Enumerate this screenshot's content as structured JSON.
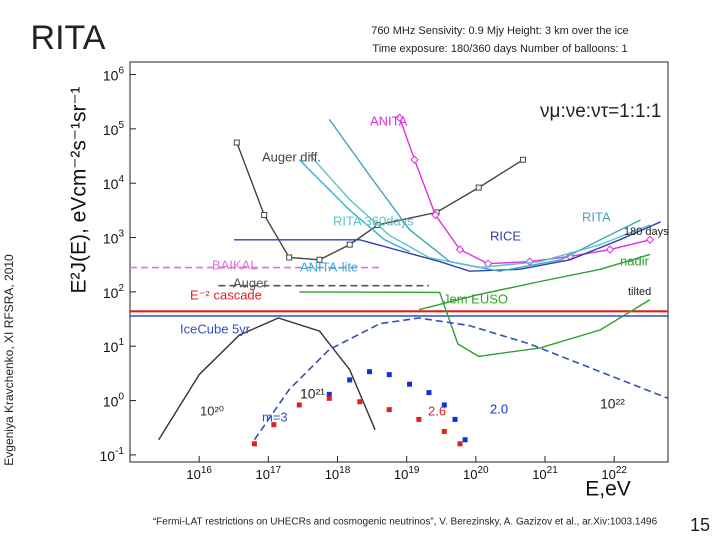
{
  "slide": {
    "title": "RITA",
    "header": [
      "760 MHz   Sensivity: 0.9 Mjy  Height: 3 km over the ice",
      "Time exposure: 180/360 days  Number of balloons:  1"
    ],
    "side_note": "Evgeniya Kravchenko, XI RFSRA, 2010",
    "footer": "“Fermi-LAT restrictions on UHECRs and cosmogenic neutrinos”, V. Berezinsky, A. Gazizov et al., ar.Xiv:1003.1496",
    "page_number": "15"
  },
  "chart_data": {
    "type": "line",
    "log_x": true,
    "log_y": true,
    "grid": false,
    "x_label": "E,eV",
    "y_label": "E²J(E), eVcm⁻²s⁻¹sr⁻¹",
    "xlim": [
      1000000000000000.0,
      6e+22
    ],
    "ylim": [
      0.074,
      1700000.0
    ],
    "xticks": [
      {
        "value": 1e+16,
        "label": "10^16"
      },
      {
        "value": 1e+17,
        "label": "10^17"
      },
      {
        "value": 1e+18,
        "label": "10^18"
      },
      {
        "value": 1e+19,
        "label": "10^19"
      },
      {
        "value": 1e+20,
        "label": "10^20"
      },
      {
        "value": 1e+21,
        "label": "10^21"
      },
      {
        "value": 1e+22,
        "label": "10^22"
      }
    ],
    "yticks": [
      {
        "value": 0.1,
        "label": "10^-1"
      },
      {
        "value": 1,
        "label": "10^0"
      },
      {
        "value": 10,
        "label": "10^1"
      },
      {
        "value": 100,
        "label": "10^2"
      },
      {
        "value": 1000,
        "label": "10^3"
      },
      {
        "value": 10000,
        "label": "10^4"
      },
      {
        "value": 100000,
        "label": "10^5"
      },
      {
        "value": 1000000,
        "label": "10^6"
      }
    ],
    "series": [
      {
        "name": "Auger diff.",
        "color": "#444444",
        "style": "square-markers",
        "x": [
          3.5e+16,
          8.7e+16,
          2e+17,
          5.5e+17,
          1.5e+18,
          3.8e+18,
          2.7e+19,
          1.1e+20,
          4.8e+20
        ],
        "values": [
          56000,
          2600,
          430,
          390,
          740,
          1700,
          2900,
          8300,
          27000
        ]
      },
      {
        "name": "ANITA",
        "color": "#e030e0",
        "style": "diamond-markers",
        "x": [
          7.9e+18,
          1.3e+19,
          2.6e+19,
          5.9e+19,
          1.5e+20,
          6e+20,
          2.3e+21,
          8.7e+21,
          3.3e+22
        ],
        "values": [
          160000,
          27000,
          2600,
          600,
          330,
          360,
          450,
          600,
          910
        ]
      },
      {
        "name": "RICE",
        "color": "#3040b0",
        "style": "solid",
        "x": [
          3.2e+16,
          2.1e+18,
          3e+19,
          8.1e+19,
          4.3e+20,
          2.3e+21,
          1.2e+22,
          4.7e+22
        ],
        "values": [
          910,
          910,
          360,
          240,
          260,
          390,
          910,
          1950
        ]
      },
      {
        "name": "ANITA-lite",
        "color": "#30b0d0",
        "style": "solid",
        "x": [
          2.8e+17,
          1.5e+18,
          4.8e+18,
          1.1e+19
        ],
        "values": [
          27000,
          3200,
          910,
          550
        ]
      },
      {
        "name": "RITA",
        "color": "#40a8b8",
        "style": "solid",
        "x": [
          7.6e+17,
          2.9e+18,
          1.1e+19,
          4.2e+19,
          2.2e+20,
          1.7e+21,
          6.3e+21,
          2.4e+22
        ],
        "values": [
          150000,
          14000,
          1400,
          360,
          240,
          390,
          910,
          2100
        ]
      },
      {
        "name": "RITA 360days",
        "color": "#60c0c8",
        "style": "solid",
        "x": [
          3.9e+17,
          1.5e+18,
          5.6e+18,
          2.1e+19,
          1.1e+20,
          8.5e+20,
          6.3e+21,
          3.3e+22
        ],
        "values": [
          34000,
          5000,
          1100,
          430,
          280,
          360,
          740,
          1700
        ]
      },
      {
        "name": "BAIKAL",
        "color": "#e070e0",
        "style": "dashed",
        "x": [
          1000000000000000.0,
          4.1e+18
        ],
        "values": [
          280,
          280
        ]
      },
      {
        "name": "Auger",
        "color": "#555555",
        "style": "dashed",
        "x": [
          1.9e+16,
          2.1e+19
        ],
        "values": [
          130,
          130
        ]
      },
      {
        "name": "E⁻² cascade",
        "color": "#e02020",
        "style": "solid",
        "x": [
          1000000000000000.0,
          6e+22
        ],
        "values": [
          44,
          44
        ]
      },
      {
        "name": "IceCube 5yr",
        "color": "#3050c0",
        "style": "solid",
        "x": [
          1000000000000000.0,
          6e+22
        ],
        "values": [
          36,
          36
        ]
      },
      {
        "name": "Jem EUSO",
        "color": "#30a030",
        "style": "solid",
        "x": [
          2.8e+17,
          3e+19,
          5.5e+19,
          1.1e+20,
          8.5e+20,
          6.3e+21,
          3.3e+22
        ],
        "values": [
          100,
          98,
          11,
          6.5,
          9.3,
          20,
          72
        ]
      },
      {
        "name": "nadir",
        "color": "#30a030",
        "style": "solid",
        "x": [
          1.5e+19,
          1.1e+20,
          8.5e+20,
          6.3e+21,
          3.3e+22
        ],
        "values": [
          47,
          89,
          155,
          260,
          490
        ]
      },
      {
        "name": "10²⁰",
        "color": "#333333",
        "style": "solid",
        "x": [
          2600000000000000.0,
          1e+16,
          3.8e+16,
          1.4e+17,
          5.5e+17,
          1.5e+18,
          3.5e+18
        ],
        "values": [
          0.19,
          3,
          16,
          33,
          19,
          3.7,
          0.29
        ]
      },
      {
        "name": "m=3",
        "color": "#3050c0",
        "style": "dashed",
        "x": [
          6.3e+16,
          2e+17,
          7.6e+17,
          4.1e+18,
          1.5e+19,
          8.1e+19,
          6e+20,
          4.5e+21,
          6e+22
        ],
        "values": [
          0.19,
          1.6,
          8.7,
          26,
          33,
          24,
          11,
          4,
          1.1
        ]
      },
      {
        "name": "2.0",
        "color": "#1030e0",
        "style": "dots",
        "x": [
          7.6e+17,
          1.5e+18,
          2.9e+18,
          5.6e+18,
          1.1e+19,
          2.1e+19,
          3.5e+19,
          5e+19,
          7e+19
        ],
        "values": [
          1.3,
          2.4,
          3.4,
          3,
          2,
          1.4,
          0.83,
          0.45,
          0.19
        ]
      },
      {
        "name": "2.6",
        "color": "#e02020",
        "style": "dots",
        "x": [
          6.3e+16,
          1.2e+17,
          2.8e+17,
          7.6e+17,
          2.1e+18,
          5.6e+18,
          1.5e+19,
          3.5e+19,
          5.9e+19
        ],
        "values": [
          0.16,
          0.36,
          0.83,
          1.1,
          0.95,
          0.68,
          0.45,
          0.27,
          0.16
        ]
      }
    ],
    "annotations": [
      "180 days",
      "tilted",
      "10²¹",
      "10²²",
      "νμ:νe:ντ=1:1:1"
    ]
  }
}
